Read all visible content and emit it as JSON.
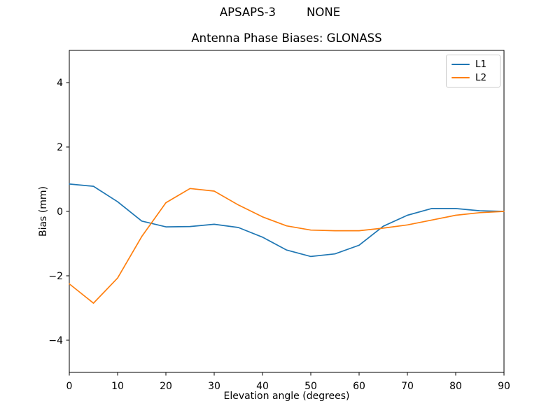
{
  "header": {
    "left": "APSAPS-3",
    "right": "NONE"
  },
  "chart_data": {
    "type": "line",
    "title": "Antenna Phase Biases: GLONASS",
    "xlabel": "Elevation angle (degrees)",
    "ylabel": "Bias (mm)",
    "xlim": [
      0,
      90
    ],
    "ylim": [
      -5,
      5
    ],
    "xticks": [
      0,
      10,
      20,
      30,
      40,
      50,
      60,
      70,
      80,
      90
    ],
    "yticks": [
      -4,
      -2,
      0,
      2,
      4
    ],
    "grid": false,
    "legend_position": "upper right",
    "frame_color": "#000000",
    "x": [
      0,
      5,
      10,
      15,
      20,
      25,
      30,
      35,
      40,
      45,
      50,
      55,
      60,
      65,
      70,
      75,
      80,
      85,
      90
    ],
    "series": [
      {
        "name": "L1",
        "color": "#1f77b4",
        "values": [
          0.85,
          0.78,
          0.3,
          -0.3,
          -0.48,
          -0.47,
          -0.4,
          -0.5,
          -0.8,
          -1.2,
          -1.4,
          -1.32,
          -1.05,
          -0.46,
          -0.12,
          0.09,
          0.09,
          0.02,
          0.0
        ]
      },
      {
        "name": "L2",
        "color": "#ff7f0e",
        "values": [
          -2.25,
          -2.85,
          -2.07,
          -0.78,
          0.27,
          0.71,
          0.63,
          0.2,
          -0.17,
          -0.45,
          -0.58,
          -0.6,
          -0.6,
          -0.52,
          -0.42,
          -0.27,
          -0.12,
          -0.04,
          0.0
        ]
      }
    ]
  }
}
